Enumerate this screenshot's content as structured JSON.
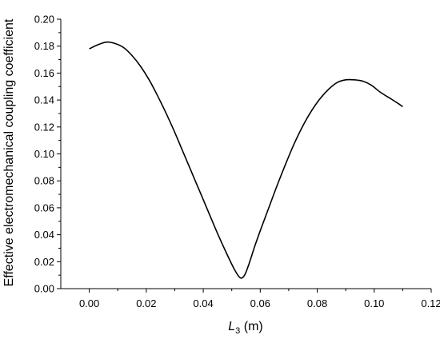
{
  "chart_data": {
    "type": "line",
    "title": "",
    "xlabel": {
      "main": "L",
      "sub": "3",
      "unit": " (m)"
    },
    "ylabel": "Effective electromechanical coupling coefficient",
    "xlim": [
      -0.01,
      0.12
    ],
    "ylim": [
      0.0,
      0.2
    ],
    "xticks": [
      "0.00",
      "0.02",
      "0.04",
      "0.06",
      "0.08",
      "0.10",
      "0.12"
    ],
    "yticks": [
      "0.00",
      "0.02",
      "0.04",
      "0.06",
      "0.08",
      "0.10",
      "0.12",
      "0.14",
      "0.16",
      "0.18",
      "0.20"
    ],
    "grid": false,
    "series": [
      {
        "color": "#000000",
        "x": [
          0.0,
          0.003,
          0.006,
          0.009,
          0.012,
          0.015,
          0.018,
          0.021,
          0.024,
          0.027,
          0.03,
          0.033,
          0.036,
          0.039,
          0.042,
          0.045,
          0.048,
          0.051,
          0.053,
          0.0545,
          0.056,
          0.058,
          0.06,
          0.063,
          0.066,
          0.069,
          0.072,
          0.075,
          0.078,
          0.081,
          0.084,
          0.087,
          0.09,
          0.093,
          0.096,
          0.099,
          0.102,
          0.105,
          0.108,
          0.11
        ],
        "y": [
          0.178,
          0.181,
          0.183,
          0.182,
          0.179,
          0.173,
          0.165,
          0.155,
          0.143,
          0.13,
          0.116,
          0.101,
          0.086,
          0.071,
          0.056,
          0.041,
          0.027,
          0.014,
          0.008,
          0.01,
          0.018,
          0.031,
          0.043,
          0.06,
          0.077,
          0.093,
          0.108,
          0.121,
          0.132,
          0.141,
          0.148,
          0.153,
          0.155,
          0.155,
          0.154,
          0.151,
          0.146,
          0.142,
          0.138,
          0.135
        ]
      }
    ]
  }
}
